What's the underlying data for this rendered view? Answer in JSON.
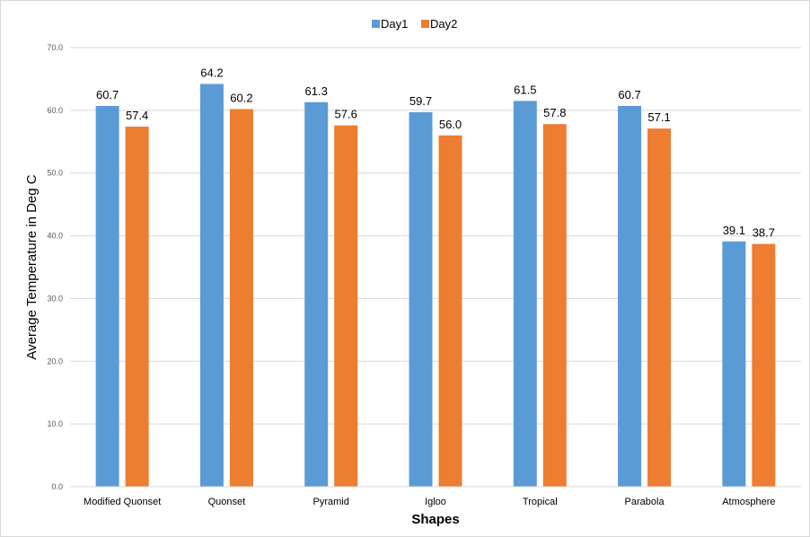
{
  "chart_data": {
    "type": "bar",
    "title": "",
    "xlabel": "Shapes",
    "ylabel": "Average Temperature in Deg C",
    "categories": [
      "Modified Quonset",
      "Quonset",
      "Pyramid",
      "Igloo",
      "Tropical",
      "Parabola",
      "Atmosphere"
    ],
    "series": [
      {
        "name": "Day1",
        "color": "#5b9bd5",
        "values": [
          60.7,
          64.2,
          61.3,
          59.7,
          61.5,
          60.7,
          39.1
        ],
        "labels": [
          "60.7",
          "64.2",
          "61.3",
          "59.7",
          "61.5",
          "60.7",
          "39.1"
        ]
      },
      {
        "name": "Day2",
        "color": "#ed7d31",
        "values": [
          57.4,
          60.2,
          57.6,
          56.0,
          57.8,
          57.1,
          38.7
        ],
        "labels": [
          "57.4",
          "60.2",
          "57.6",
          "56.0",
          "57.8",
          "57.1",
          "38.7"
        ]
      }
    ],
    "ylim": [
      0,
      70
    ],
    "yticks": [
      0,
      10,
      20,
      30,
      40,
      50,
      60,
      70
    ],
    "ytick_labels": [
      "0.0",
      "10.0",
      "20.0",
      "30.0",
      "40.0",
      "50.0",
      "60.0",
      "70.0"
    ],
    "grid": true,
    "gridline_color": "#d9d9d9",
    "legend": "top-center"
  }
}
